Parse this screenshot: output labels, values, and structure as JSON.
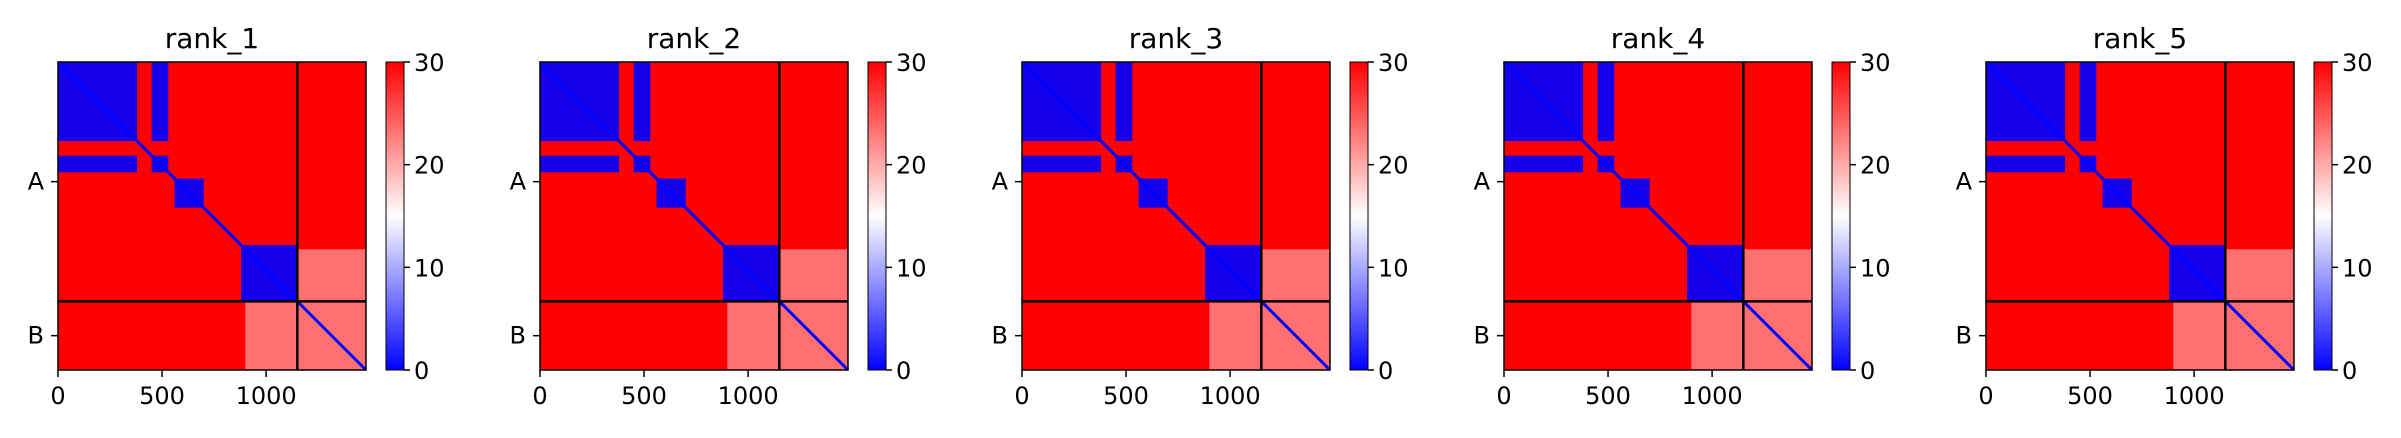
{
  "chart_data": [
    {
      "type": "heatmap",
      "title": "rank_1",
      "x_ticks": [
        0,
        500,
        1000
      ],
      "chain_labels": [
        "A",
        "B"
      ],
      "chain_boundary": 1150,
      "total_length": 1480,
      "colorbar": {
        "min": 0,
        "max": 30,
        "ticks": [
          0,
          10,
          20,
          30
        ],
        "colors": [
          "#0000ff",
          "#ffffff",
          "#ff0000"
        ]
      }
    },
    {
      "type": "heatmap",
      "title": "rank_2",
      "x_ticks": [
        0,
        500,
        1000
      ],
      "chain_labels": [
        "A",
        "B"
      ],
      "chain_boundary": 1150,
      "total_length": 1480,
      "colorbar": {
        "min": 0,
        "max": 30,
        "ticks": [
          0,
          10,
          20,
          30
        ],
        "colors": [
          "#0000ff",
          "#ffffff",
          "#ff0000"
        ]
      }
    },
    {
      "type": "heatmap",
      "title": "rank_3",
      "x_ticks": [
        0,
        500,
        1000
      ],
      "chain_labels": [
        "A",
        "B"
      ],
      "chain_boundary": 1150,
      "total_length": 1480,
      "colorbar": {
        "min": 0,
        "max": 30,
        "ticks": [
          0,
          10,
          20,
          30
        ],
        "colors": [
          "#0000ff",
          "#ffffff",
          "#ff0000"
        ]
      }
    },
    {
      "type": "heatmap",
      "title": "rank_4",
      "x_ticks": [
        0,
        500,
        1000
      ],
      "chain_labels": [
        "A",
        "B"
      ],
      "chain_boundary": 1150,
      "total_length": 1480,
      "colorbar": {
        "min": 0,
        "max": 30,
        "ticks": [
          0,
          10,
          20,
          30
        ],
        "colors": [
          "#0000ff",
          "#ffffff",
          "#ff0000"
        ]
      }
    },
    {
      "type": "heatmap",
      "title": "rank_5",
      "x_ticks": [
        0,
        500,
        1000
      ],
      "chain_labels": [
        "A",
        "B"
      ],
      "chain_boundary": 1150,
      "total_length": 1480,
      "colorbar": {
        "min": 0,
        "max": 30,
        "ticks": [
          0,
          10,
          20,
          30
        ],
        "colors": [
          "#0000ff",
          "#ffffff",
          "#ff0000"
        ]
      }
    }
  ],
  "regions": [
    [
      0,
      380,
      0,
      380,
      "low"
    ],
    [
      450,
      530,
      0,
      380,
      "low"
    ],
    [
      0,
      380,
      450,
      530,
      "low"
    ],
    [
      450,
      530,
      450,
      530,
      "low"
    ],
    [
      560,
      700,
      560,
      700,
      "low"
    ],
    [
      880,
      1150,
      880,
      1150,
      "low"
    ],
    [
      1150,
      1480,
      1150,
      1480,
      "mid"
    ],
    [
      900,
      1150,
      1150,
      1480,
      "mid"
    ],
    [
      1150,
      1480,
      900,
      1150,
      "mid"
    ]
  ]
}
